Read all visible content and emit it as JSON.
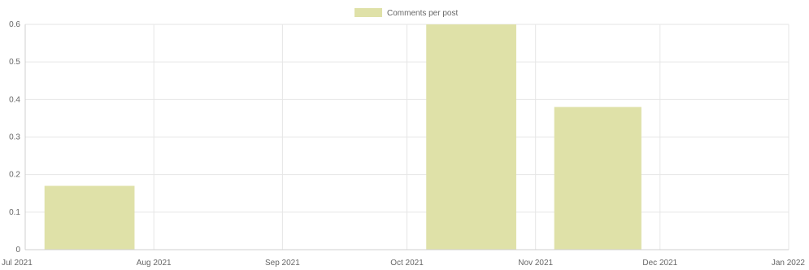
{
  "chart_data": {
    "type": "bar",
    "legend": {
      "position": "top",
      "entries": [
        {
          "label": "Comments per post",
          "color": "#dfe1a8"
        }
      ]
    },
    "x_axis": {
      "type": "time",
      "tick_labels": [
        "Jul 2021",
        "Aug 2021",
        "Sep 2021",
        "Oct 2021",
        "Nov 2021",
        "Dec 2021",
        "Jan 2022"
      ],
      "range": [
        "2021-07-01",
        "2022-01-01"
      ]
    },
    "y_axis": {
      "range": [
        0,
        0.6
      ],
      "tick_values": [
        0,
        0.1,
        0.2,
        0.3,
        0.4,
        0.5,
        0.6
      ],
      "tick_labels": [
        "0",
        "0.1",
        "0.2",
        "0.3",
        "0.4",
        "0.5",
        "0.6"
      ]
    },
    "grid": true,
    "series": [
      {
        "name": "Comments per post",
        "color": "#dfe1a8",
        "points": [
          {
            "x": "2021-07-01",
            "y": 0.17
          },
          {
            "x": "2021-10-01",
            "y": 0.6
          },
          {
            "x": "2021-11-01",
            "y": 0.38
          }
        ]
      }
    ]
  }
}
